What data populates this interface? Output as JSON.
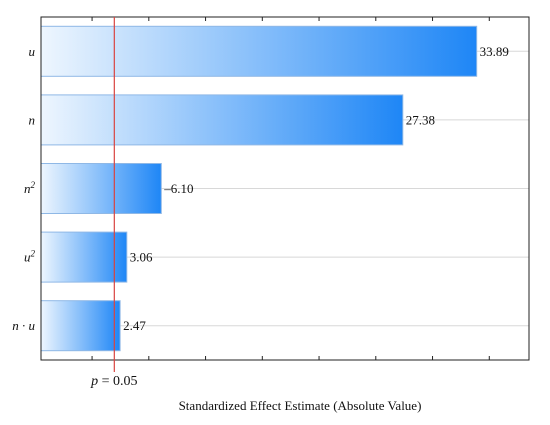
{
  "chart_data": {
    "type": "bar",
    "orientation": "horizontal",
    "title": "",
    "xlabel": "Standardized Effect Estimate (Absolute Value)",
    "ylabel": "",
    "grid": true,
    "reference_line": {
      "value": 1.96,
      "label_var": "p",
      "label_rest": " = 0.05",
      "color": "#d9433f"
    },
    "categories": [
      {
        "id": "u",
        "base": "u",
        "sup": ""
      },
      {
        "id": "n",
        "base": "n",
        "sup": ""
      },
      {
        "id": "n2",
        "base": "n",
        "sup": "2"
      },
      {
        "id": "u2",
        "base": "u",
        "sup": "2"
      },
      {
        "id": "nu",
        "base": "n · u",
        "sup": ""
      }
    ],
    "values": [
      33.89,
      27.38,
      6.1,
      3.06,
      2.47
    ],
    "labels": [
      "33.89",
      "27.38",
      "–6.10",
      "3.06",
      "2.47"
    ],
    "xlim": [
      -4.5,
      38.5
    ],
    "colors": {
      "bar_light": "#eef6fe",
      "bar_dark": "#1e86f6",
      "bar_edge": "#8fb8e6",
      "grid": "#d8d8d8"
    }
  }
}
